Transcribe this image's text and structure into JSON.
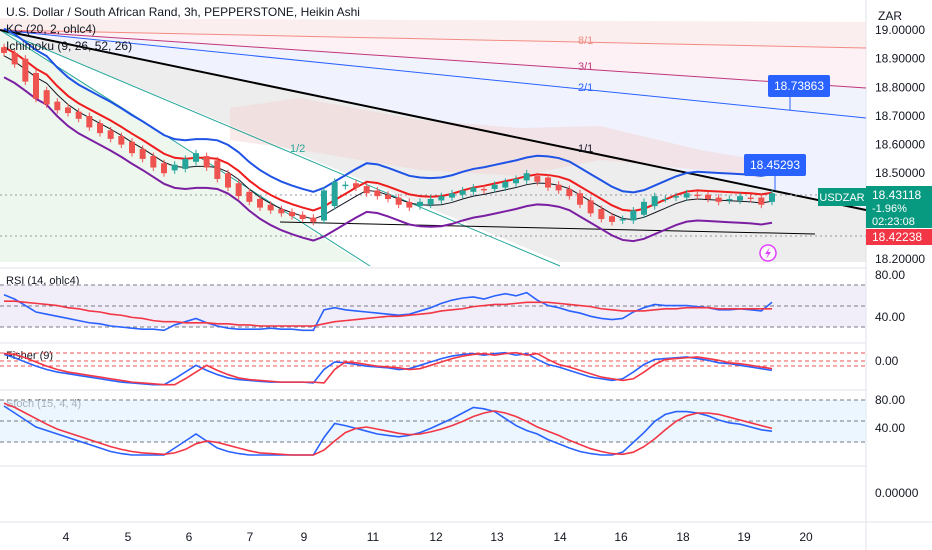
{
  "header": {
    "title": "U.S. Dollar / South African Rand, 3h, PEPPERSTONE, Heikin Ashi",
    "indicators": [
      "KC (20, 2, ohlc4)",
      "Ichimoku (9, 26, 52, 26)"
    ]
  },
  "currency_label": "ZAR",
  "symbol_badge": "USDZAR",
  "price_badge": {
    "price": "18.43118",
    "change": "-1.96%",
    "countdown": "02:23:08"
  },
  "secondary_badge": "18.42238",
  "callouts": [
    "18.73863",
    "18.45293"
  ],
  "fan_labels": [
    "8/1",
    "3/1",
    "2/1",
    "1/1",
    "1/2"
  ],
  "colors": {
    "up": "#26a69a",
    "down": "#ef5350",
    "kc": "#1e53e5",
    "ichimoku_base": "#ef1c1c",
    "purple": "#7b1fa2",
    "rsi": "#2962ff",
    "signal": "#f23645",
    "badge_blue": "#2962ff",
    "badge_red": "#f23645",
    "badge_green": "#089981"
  },
  "chart_data": [
    {
      "type": "candlestick",
      "title": "U.S. Dollar / South African Rand, 3h, PEPPERSTONE, Heikin Ashi",
      "x_ticks": [
        "4",
        "5",
        "6",
        "7",
        "9",
        "11",
        "12",
        "13",
        "14",
        "16",
        "18",
        "19",
        "20"
      ],
      "y_ticks": [
        "19.00000",
        "18.90000",
        "18.80000",
        "18.70000",
        "18.60000",
        "18.50000",
        "18.20000"
      ],
      "ylim": [
        18.19,
        19.07
      ],
      "close_series": [
        18.92,
        18.88,
        18.82,
        18.76,
        18.74,
        18.72,
        18.71,
        18.69,
        18.66,
        18.64,
        18.62,
        18.6,
        18.57,
        18.55,
        18.52,
        18.5,
        18.53,
        18.55,
        18.57,
        18.52,
        18.48,
        18.45,
        18.42,
        18.4,
        18.38,
        18.37,
        18.36,
        18.35,
        18.34,
        18.33,
        18.44,
        18.47,
        18.46,
        18.45,
        18.43,
        18.42,
        18.41,
        18.39,
        18.38,
        18.4,
        18.41,
        18.42,
        18.43,
        18.44,
        18.45,
        18.44,
        18.46,
        18.47,
        18.48,
        18.5,
        18.47,
        18.45,
        18.44,
        18.42,
        18.39,
        18.36,
        18.34,
        18.33,
        18.34,
        18.37,
        18.4,
        18.42,
        18.41,
        18.42,
        18.43,
        18.42,
        18.41,
        18.4,
        18.41,
        18.42,
        18.41,
        18.39,
        18.43
      ],
      "last_price": 18.43118
    },
    {
      "type": "line",
      "title": "RSI (14, ohlc4)",
      "y_ticks": [
        "80.00",
        "40.00"
      ],
      "ylim": [
        20,
        85
      ],
      "bands": [
        70,
        50,
        30
      ],
      "series": [
        {
          "values": [
            62,
            58,
            52,
            46,
            44,
            42,
            40,
            38,
            36,
            35,
            33,
            32,
            31,
            30,
            30,
            29,
            34,
            37,
            40,
            36,
            33,
            31,
            30,
            30,
            30,
            31,
            30,
            30,
            29,
            29,
            48,
            50,
            48,
            47,
            46,
            45,
            44,
            43,
            44,
            47,
            50,
            54,
            57,
            59,
            60,
            58,
            61,
            63,
            61,
            64,
            57,
            52,
            50,
            47,
            45,
            42,
            40,
            39,
            40,
            46,
            50,
            53,
            52,
            52,
            52,
            51,
            50,
            48,
            48,
            49,
            48,
            47,
            55
          ]
        },
        {
          "values": [
            56,
            56,
            55,
            54,
            53,
            52,
            50,
            49,
            47,
            46,
            44,
            43,
            41,
            40,
            38,
            37,
            37,
            36,
            36,
            36,
            35,
            35,
            34,
            34,
            33,
            33,
            33,
            33,
            33,
            33,
            35,
            37,
            38,
            39,
            40,
            41,
            42,
            42,
            43,
            44,
            45,
            47,
            48,
            49,
            51,
            52,
            53,
            53,
            54,
            55,
            55,
            55,
            54,
            53,
            52,
            51,
            49,
            48,
            47,
            47,
            47,
            48,
            49,
            49,
            50,
            50,
            50,
            49,
            49,
            49,
            49,
            49,
            49
          ]
        }
      ]
    },
    {
      "type": "line",
      "title": "Fisher (9)",
      "y_ticks": [
        "0.00"
      ],
      "ylim": [
        -2.5,
        2.5
      ],
      "series": [
        {
          "values": [
            1.5,
            1.1,
            0.6,
            0.1,
            -0.3,
            -0.6,
            -0.8,
            -1.0,
            -1.2,
            -1.4,
            -1.6,
            -1.8,
            -1.9,
            -2.0,
            -2.1,
            -2.1,
            -1.4,
            -0.6,
            0.2,
            -0.4,
            -0.9,
            -1.3,
            -1.5,
            -1.6,
            -1.7,
            -1.8,
            -1.8,
            -1.8,
            -1.8,
            -1.9,
            -0.3,
            0.6,
            0.5,
            0.3,
            0.1,
            0.0,
            -0.1,
            -0.3,
            -0.2,
            0.2,
            0.6,
            1.0,
            1.3,
            1.5,
            1.6,
            1.4,
            1.6,
            1.7,
            1.4,
            1.6,
            0.9,
            0.3,
            0.0,
            -0.4,
            -0.8,
            -1.2,
            -1.4,
            -1.6,
            -1.4,
            -0.6,
            0.3,
            0.9,
            1.0,
            1.1,
            1.2,
            1.0,
            0.8,
            0.5,
            0.4,
            0.2,
            0.0,
            -0.2,
            -0.4
          ]
        },
        {
          "values": [
            1.6,
            1.5,
            1.1,
            0.6,
            0.1,
            -0.3,
            -0.6,
            -0.8,
            -1.0,
            -1.2,
            -1.4,
            -1.6,
            -1.8,
            -1.9,
            -2.0,
            -2.1,
            -2.1,
            -1.4,
            -0.6,
            0.2,
            -0.4,
            -0.9,
            -1.3,
            -1.5,
            -1.6,
            -1.7,
            -1.8,
            -1.8,
            -1.8,
            -1.8,
            -1.9,
            -0.3,
            0.6,
            0.5,
            0.3,
            0.1,
            0.0,
            -0.1,
            -0.3,
            -0.2,
            0.2,
            0.6,
            1.0,
            1.3,
            1.5,
            1.6,
            1.4,
            1.6,
            1.7,
            1.4,
            1.6,
            0.9,
            0.3,
            0.0,
            -0.4,
            -0.8,
            -1.2,
            -1.4,
            -1.6,
            -1.4,
            -0.6,
            0.3,
            0.9,
            1.0,
            1.1,
            1.2,
            1.0,
            0.8,
            0.5,
            0.4,
            0.2,
            0.0,
            -0.2
          ]
        }
      ]
    },
    {
      "type": "line",
      "title": "Stoch (15, 4, 4)",
      "y_ticks": [
        "80.00",
        "40.00"
      ],
      "ylim": [
        0,
        100
      ],
      "bands": [
        80,
        50,
        20
      ],
      "series": [
        {
          "values": [
            80,
            70,
            60,
            50,
            45,
            40,
            35,
            30,
            25,
            20,
            15,
            12,
            10,
            10,
            10,
            10,
            20,
            30,
            40,
            30,
            20,
            15,
            12,
            10,
            10,
            10,
            10,
            10,
            10,
            10,
            35,
            55,
            52,
            48,
            44,
            40,
            38,
            36,
            38,
            42,
            48,
            55,
            62,
            70,
            78,
            76,
            72,
            62,
            52,
            45,
            40,
            32,
            26,
            20,
            15,
            12,
            10,
            10,
            14,
            28,
            42,
            58,
            68,
            72,
            72,
            70,
            66,
            60,
            56,
            54,
            50,
            46,
            44
          ]
        },
        {
          "values": [
            84,
            78,
            70,
            62,
            54,
            47,
            42,
            37,
            32,
            27,
            22,
            18,
            15,
            13,
            12,
            11,
            13,
            18,
            26,
            30,
            28,
            24,
            20,
            16,
            13,
            12,
            11,
            10,
            10,
            10,
            17,
            30,
            42,
            48,
            50,
            47,
            44,
            41,
            39,
            40,
            43,
            47,
            52,
            58,
            65,
            70,
            73,
            70,
            65,
            58,
            50,
            44,
            38,
            31,
            25,
            19,
            15,
            12,
            11,
            14,
            22,
            33,
            46,
            58,
            66,
            70,
            70,
            68,
            64,
            60,
            56,
            52,
            48
          ]
        }
      ]
    },
    {
      "type": "line",
      "title": "",
      "y_ticks": [
        "0.00000"
      ],
      "series": []
    }
  ]
}
